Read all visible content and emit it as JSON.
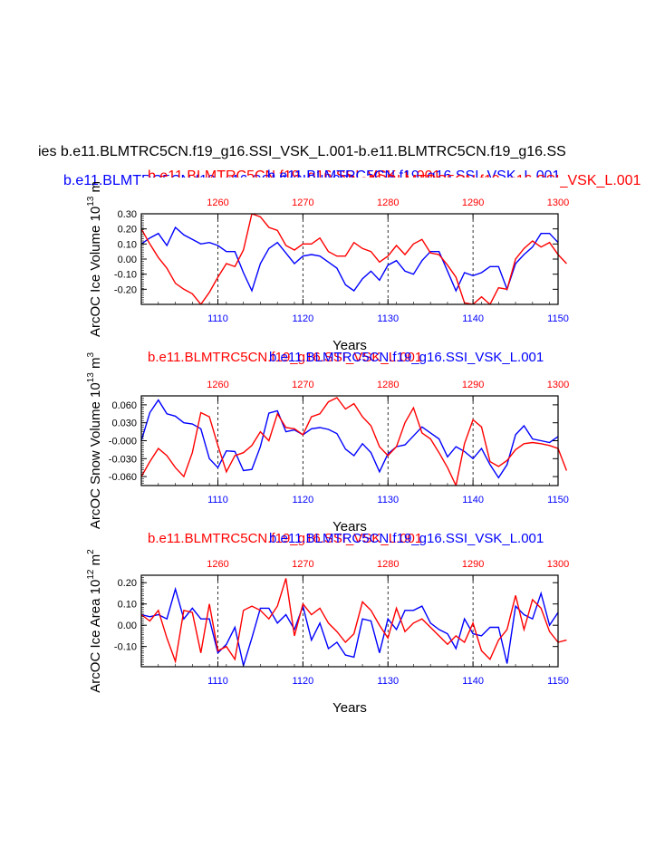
{
  "figure": {
    "main_title": "ies b.e11.BLMTRC5CN.f19_g16.SSI_VSK_L.001-b.e11.BLMTRC5CN.f19_g16.SS",
    "top_overlap_title_blue": "b.e11.BLMTRC5CN.f19_g16.SSI_VSK_L.001",
    "top_overlap_title_red": "b.e11.BLMTRC5CN.f19_g16.SSI_VSK_L.001",
    "top_overlap_title_blue2": "b.e11.BLMTRC5CN.f19_g16.SSI_VSK_L.001",
    "top_overlap_title_red2": "b.e11.BLMTRC5CN.f19_g16.SSI_VSK_L.001",
    "colors": {
      "blue": "#0000ff",
      "red": "#ff0000",
      "black": "#000000"
    }
  },
  "chart_data": [
    {
      "type": "line",
      "ylabel": "ArcOC Ice Volume 10",
      "ylabel_exp": "13",
      "ylabel_unit": "m",
      "xlabel": "Years",
      "red_title": "b.e11.BLMTRC5CN.f19_g16.SSI_VSK_L.001",
      "blue_title": "b.e11.BLMTRC5CN.f19_g16.SSI_VSK_L.001",
      "ylim": [
        -0.3,
        0.3
      ],
      "yticks": [
        0.3,
        0.2,
        0.1,
        0.0,
        -0.1,
        -0.2
      ],
      "ytick_labels": [
        "0.30",
        "0.20",
        "0.10",
        "0.00",
        "-0.10",
        "-0.20"
      ],
      "bottom_xlim": [
        1101,
        1150
      ],
      "bottom_xticks": [
        1110,
        1120,
        1130,
        1140,
        1150
      ],
      "top_xlim": [
        1251,
        1300
      ],
      "top_xticks": [
        1260,
        1270,
        1280,
        1290,
        1300
      ],
      "series": [
        {
          "name": "blue",
          "axis": "bottom",
          "x_start": 1101,
          "values": [
            0.1,
            0.14,
            0.17,
            0.09,
            0.21,
            0.16,
            0.13,
            0.1,
            0.11,
            0.09,
            0.05,
            0.05,
            -0.09,
            -0.21,
            -0.03,
            0.07,
            0.11,
            0.04,
            -0.03,
            0.02,
            0.03,
            0.02,
            -0.02,
            -0.06,
            -0.17,
            -0.21,
            -0.13,
            -0.08,
            -0.14,
            -0.04,
            -0.01,
            -0.08,
            -0.1,
            -0.01,
            0.05,
            0.05,
            -0.08,
            -0.21,
            -0.09,
            -0.11,
            -0.09,
            -0.05,
            -0.05,
            -0.2,
            -0.03,
            0.03,
            0.08,
            0.17,
            0.17,
            0.11
          ]
        },
        {
          "name": "red",
          "axis": "top",
          "x_start": 1251,
          "values": [
            0.2,
            0.1,
            0.01,
            -0.06,
            -0.16,
            -0.2,
            -0.23,
            -0.3,
            -0.22,
            -0.12,
            -0.03,
            -0.05,
            0.06,
            0.3,
            0.28,
            0.21,
            0.19,
            0.09,
            0.06,
            0.1,
            0.1,
            0.14,
            0.05,
            0.02,
            0.02,
            0.11,
            0.07,
            0.05,
            -0.02,
            0.02,
            0.09,
            0.03,
            0.1,
            0.13,
            0.04,
            0.03,
            -0.04,
            -0.12,
            -0.29,
            -0.3,
            -0.25,
            -0.3,
            -0.19,
            -0.2,
            0.0,
            0.07,
            0.12,
            0.08,
            0.11,
            0.03,
            -0.03
          ]
        }
      ]
    },
    {
      "type": "line",
      "ylabel": "ArcOC Snow Volume 10",
      "ylabel_exp": "13",
      "ylabel_unit": "m",
      "ylabel_unit_exp": "3",
      "xlabel": "Years",
      "red_title": "b.e11.BLMTRC5CN.f19_g16.SSI_VSK_L.001",
      "blue_title": "b.e11.BLMTRC5CN.f19_g16.SSI_VSK_L.001",
      "ylim": [
        -0.075,
        0.075
      ],
      "yticks": [
        0.06,
        0.03,
        0.0,
        -0.03,
        -0.06
      ],
      "ytick_labels": [
        "0.060",
        "0.030",
        "-0.000",
        "-0.030",
        "-0.060"
      ],
      "bottom_xlim": [
        1101,
        1150
      ],
      "bottom_xticks": [
        1110,
        1120,
        1130,
        1140,
        1150
      ],
      "top_xlim": [
        1251,
        1300
      ],
      "top_xticks": [
        1260,
        1270,
        1280,
        1290,
        1300
      ],
      "series": [
        {
          "name": "blue",
          "axis": "bottom",
          "x_start": 1101,
          "values": [
            0.0,
            0.047,
            0.068,
            0.045,
            0.041,
            0.03,
            0.028,
            0.02,
            -0.03,
            -0.045,
            -0.017,
            -0.018,
            -0.05,
            -0.048,
            -0.01,
            0.046,
            0.05,
            0.015,
            0.018,
            0.01,
            0.02,
            0.022,
            0.019,
            0.012,
            -0.014,
            -0.025,
            -0.005,
            -0.02,
            -0.052,
            -0.022,
            -0.01,
            -0.007,
            0.008,
            0.023,
            0.013,
            0.003,
            -0.027,
            -0.01,
            -0.018,
            -0.03,
            -0.013,
            -0.04,
            -0.062,
            -0.04,
            0.01,
            0.025,
            0.003,
            0.0,
            -0.003,
            0.007
          ]
        },
        {
          "name": "red",
          "axis": "top",
          "x_start": 1251,
          "values": [
            -0.06,
            -0.035,
            -0.013,
            -0.025,
            -0.045,
            -0.06,
            -0.02,
            0.047,
            0.04,
            -0.008,
            -0.052,
            -0.025,
            -0.02,
            -0.008,
            0.015,
            0.0,
            0.045,
            0.022,
            0.02,
            0.01,
            0.04,
            0.045,
            0.065,
            0.072,
            0.053,
            0.062,
            0.04,
            0.025,
            -0.01,
            -0.025,
            -0.01,
            0.03,
            0.055,
            0.013,
            0.003,
            -0.02,
            -0.045,
            -0.075,
            -0.005,
            0.035,
            0.023,
            -0.035,
            -0.043,
            -0.033,
            -0.015,
            -0.005,
            -0.003,
            -0.005,
            -0.008,
            -0.013,
            -0.05
          ]
        }
      ]
    },
    {
      "type": "line",
      "ylabel": "ArcOC Ice Area 10",
      "ylabel_exp": "12",
      "ylabel_unit": "m",
      "ylabel_unit_exp": "2",
      "xlabel": "Years",
      "red_title": "b.e11.BLMTRC5CN.f19_g16.SSI_VSK_L.001",
      "blue_title": "b.e11.BLMTRC5CN.f19_g16.SSI_VSK_L.001",
      "ylim": [
        -0.195,
        0.235
      ],
      "yticks": [
        0.2,
        0.1,
        0.0,
        -0.1
      ],
      "ytick_labels": [
        "0.20",
        "0.10",
        "0.00",
        "-0.10"
      ],
      "bottom_xlim": [
        1101,
        1150
      ],
      "bottom_xticks": [
        1110,
        1120,
        1130,
        1140,
        1150
      ],
      "top_xlim": [
        1251,
        1300
      ],
      "top_xticks": [
        1260,
        1270,
        1280,
        1290,
        1300
      ],
      "series": [
        {
          "name": "blue",
          "axis": "bottom",
          "x_start": 1101,
          "values": [
            0.05,
            0.04,
            0.05,
            0.03,
            0.17,
            0.03,
            0.08,
            0.03,
            0.03,
            -0.13,
            -0.09,
            -0.01,
            -0.19,
            -0.06,
            0.08,
            0.08,
            0.01,
            0.05,
            -0.02,
            0.09,
            -0.07,
            0.01,
            -0.11,
            -0.08,
            -0.14,
            -0.15,
            0.03,
            0.02,
            -0.13,
            0.03,
            -0.02,
            0.07,
            0.07,
            0.09,
            0.01,
            -0.02,
            -0.04,
            -0.11,
            0.03,
            -0.04,
            -0.05,
            -0.01,
            -0.01,
            -0.18,
            0.09,
            0.05,
            0.03,
            0.15,
            0.0,
            0.06
          ]
        },
        {
          "name": "red",
          "axis": "top",
          "x_start": 1251,
          "values": [
            0.05,
            0.02,
            0.07,
            -0.06,
            -0.17,
            0.07,
            0.06,
            -0.13,
            0.1,
            -0.12,
            -0.1,
            -0.16,
            0.07,
            0.09,
            0.07,
            0.03,
            0.09,
            0.22,
            -0.05,
            0.1,
            0.05,
            0.08,
            0.01,
            -0.03,
            -0.08,
            -0.04,
            0.11,
            0.07,
            0.0,
            -0.06,
            0.08,
            -0.03,
            0.01,
            0.03,
            -0.01,
            -0.05,
            -0.09,
            -0.05,
            -0.08,
            0.01,
            -0.12,
            -0.16,
            -0.07,
            -0.02,
            0.14,
            -0.02,
            0.12,
            0.08,
            -0.03,
            -0.08,
            -0.07
          ]
        }
      ]
    }
  ]
}
